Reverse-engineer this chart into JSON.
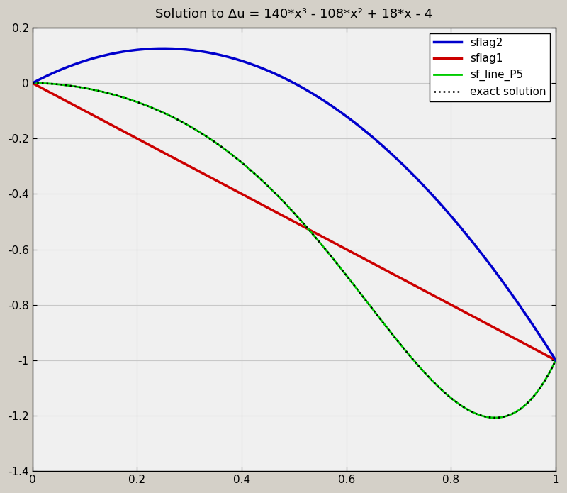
{
  "title": "Solution to Δu = 140*x³ - 108*x² + 18*x - 4",
  "xlim": [
    0,
    1
  ],
  "ylim": [
    -1.4,
    0.2
  ],
  "xticks": [
    0,
    0.2,
    0.4,
    0.6,
    0.8,
    1.0
  ],
  "yticks": [
    0.2,
    0.0,
    -0.2,
    -0.4,
    -0.6,
    -0.8,
    -1.0,
    -1.2,
    -1.4
  ],
  "grid_color": "#c8c8c8",
  "bg_color": "#f0f0f0",
  "exact_color": "#000000",
  "sf_line_P5_color": "#00cc00",
  "sflag2_color": "#0000cc",
  "sflag1_color": "#cc0000",
  "legend_labels": [
    "exact solution",
    "sf_line_P5",
    "sflag2",
    "sflag1"
  ],
  "n_points": 300,
  "fig_facecolor": "#d4d0c8"
}
